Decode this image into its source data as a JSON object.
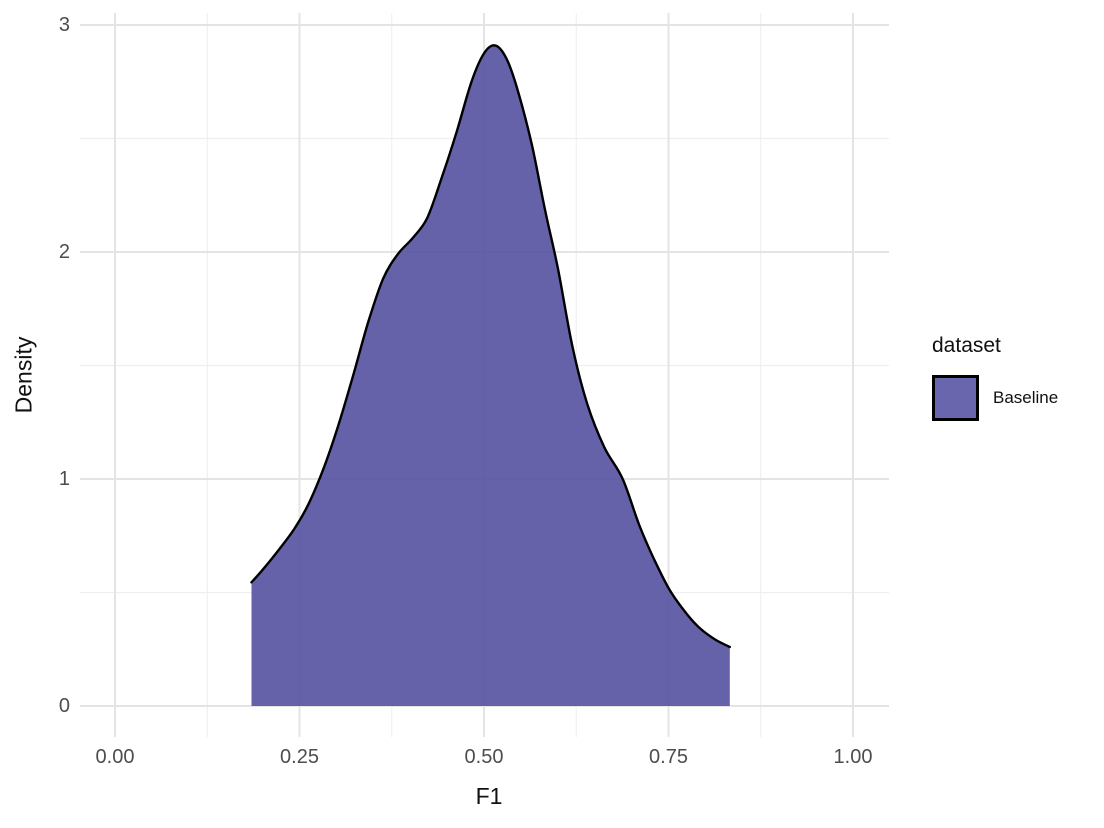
{
  "figure": {
    "background_color": "#ffffff",
    "panel": {
      "grid_major_color": "#e4e4e4",
      "grid_minor_color": "#efefef",
      "grid_on": true
    },
    "x_axis": {
      "title": "F1",
      "tick_labels": [
        "0.00",
        "0.25",
        "0.50",
        "0.75",
        "1.00"
      ],
      "tick_values": [
        0,
        0.25,
        0.5,
        0.75,
        1.0
      ],
      "minor_tick_values": [
        0.125,
        0.375,
        0.625,
        0.875
      ]
    },
    "y_axis": {
      "title": "Density",
      "tick_labels": [
        "0",
        "1",
        "2",
        "3"
      ],
      "tick_values": [
        0,
        1,
        2,
        3
      ],
      "minor_tick_values": [
        0.5,
        1.5,
        2.5
      ]
    },
    "legend": {
      "title": "dataset",
      "position": "right",
      "entries": [
        {
          "label": "Baseline",
          "fill": "#6a66ad",
          "border": "#000000"
        }
      ]
    }
  },
  "chart_data": {
    "type": "area",
    "subtype": "density-curve",
    "title": "",
    "xlabel": "F1",
    "ylabel": "Density",
    "xlim": [
      -0.047,
      1.048
    ],
    "ylim": [
      -0.137,
      3.053
    ],
    "legend_position": "right",
    "grid": "on",
    "series": [
      {
        "name": "Baseline",
        "fill_color": "#5551a0",
        "fill_opacity": 0.9,
        "stroke_color": "#000000",
        "stroke_width": 2.4,
        "peak": {
          "x": 0.515,
          "y": 2.91
        },
        "x_range": [
          0.185,
          0.833
        ],
        "points": [
          [
            0.185,
            0.545
          ],
          [
            0.2,
            0.6
          ],
          [
            0.22,
            0.68
          ],
          [
            0.243,
            0.78
          ],
          [
            0.263,
            0.895
          ],
          [
            0.283,
            1.05
          ],
          [
            0.303,
            1.24
          ],
          [
            0.323,
            1.46
          ],
          [
            0.343,
            1.69
          ],
          [
            0.363,
            1.88
          ],
          [
            0.383,
            1.99
          ],
          [
            0.403,
            2.06
          ],
          [
            0.423,
            2.15
          ],
          [
            0.443,
            2.33
          ],
          [
            0.463,
            2.53
          ],
          [
            0.483,
            2.75
          ],
          [
            0.5,
            2.875
          ],
          [
            0.515,
            2.91
          ],
          [
            0.53,
            2.855
          ],
          [
            0.545,
            2.72
          ],
          [
            0.565,
            2.47
          ],
          [
            0.583,
            2.18
          ],
          [
            0.6,
            1.93
          ],
          [
            0.62,
            1.58
          ],
          [
            0.64,
            1.33
          ],
          [
            0.663,
            1.14
          ],
          [
            0.688,
            1.0
          ],
          [
            0.71,
            0.8
          ],
          [
            0.73,
            0.65
          ],
          [
            0.75,
            0.52
          ],
          [
            0.77,
            0.425
          ],
          [
            0.79,
            0.35
          ],
          [
            0.812,
            0.295
          ],
          [
            0.833,
            0.26
          ]
        ]
      }
    ]
  }
}
